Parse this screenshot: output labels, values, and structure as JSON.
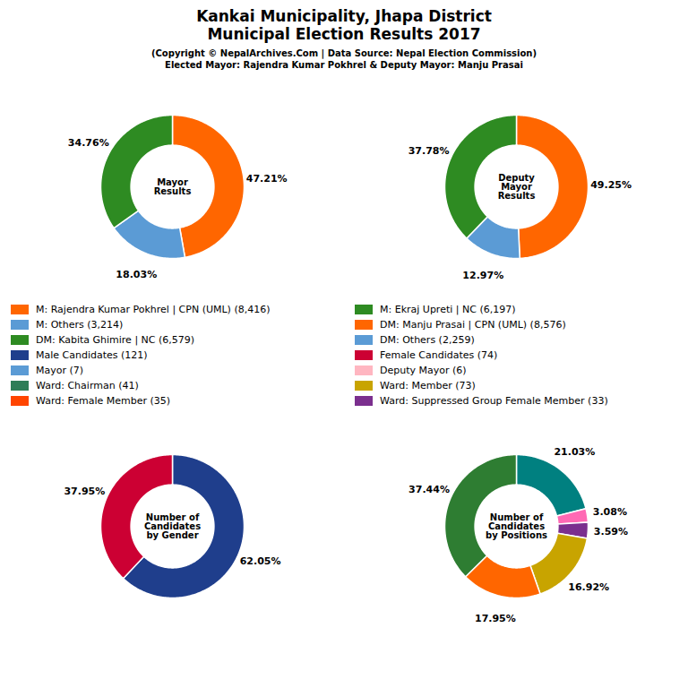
{
  "chart_data": [
    {
      "type": "pie",
      "title": "Kankai Municipality, Jhapa District\nMunicipal Election Results 2017",
      "subtitle": "(Copyright © NepalArchives.Com | Data Source: Nepal Election Commission)\nElected Mayor: Rajendra Kumar Pokhrel & Deputy Mayor: Manju Prasai",
      "annotations": [
        "Mayor\nResults"
      ],
      "values": [
        47.21,
        18.03,
        34.76
      ],
      "value_labels": [
        "47.21%",
        "18.03%",
        "34.76%"
      ],
      "colors": [
        "#FF6600",
        "#5B9BD5",
        "#2E8B22"
      ],
      "data_labels": true
    },
    {
      "type": "pie",
      "annotations": [
        "Deputy\nMayor\nResults"
      ],
      "values": [
        49.25,
        12.97,
        37.78
      ],
      "value_labels": [
        "49.25%",
        "12.97%",
        "37.78%"
      ],
      "colors": [
        "#FF6600",
        "#5B9BD5",
        "#2E8B22"
      ],
      "data_labels": true
    },
    {
      "type": "legend",
      "series": [
        {
          "name": "M: Rajendra Kumar Pokhrel | CPN (UML) (8,416)",
          "color": "#FF6600"
        },
        {
          "name": "M: Others (3,214)",
          "color": "#5B9BD5"
        },
        {
          "name": "DM: Kabita Ghimire | NC (6,579)",
          "color": "#2E8B22"
        },
        {
          "name": "Male Candidates (121)",
          "color": "#1F3E8C"
        },
        {
          "name": "Mayor (7)",
          "color": "#5B9BD5"
        },
        {
          "name": "Ward: Chairman (41)",
          "color": "#2E7D57"
        },
        {
          "name": "Ward: Female Member (35)",
          "color": "#FF4500"
        },
        {
          "name": "M: Ekraj Upreti | NC (6,197)",
          "color": "#2E8B22"
        },
        {
          "name": "DM: Manju Prasai | CPN (UML) (8,576)",
          "color": "#FF6600"
        },
        {
          "name": "DM: Others (2,259)",
          "color": "#5B9BD5"
        },
        {
          "name": "Female Candidates (74)",
          "color": "#CC0033"
        },
        {
          "name": "Deputy Mayor (6)",
          "color": "#FFB6C1"
        },
        {
          "name": "Ward: Member (73)",
          "color": "#C8A400"
        },
        {
          "name": "Ward: Suppressed Group Female Member (33)",
          "color": "#7B2F8E"
        }
      ]
    },
    {
      "type": "pie",
      "annotations": [
        "Number of\nCandidates\nby Gender"
      ],
      "values": [
        62.05,
        37.95
      ],
      "value_labels": [
        "62.05%",
        "37.95%"
      ],
      "colors": [
        "#1F3E8C",
        "#CC0033"
      ],
      "data_labels": true
    },
    {
      "type": "pie",
      "annotations": [
        "Number of\nCandidates\nby Positions"
      ],
      "values": [
        21.03,
        3.08,
        3.59,
        16.92,
        17.95,
        37.44
      ],
      "value_labels": [
        "21.03%",
        "3.08%",
        "3.59%",
        "16.92%",
        "17.95%",
        "37.44%"
      ],
      "colors": [
        "#008080",
        "#FF69B4",
        "#7B2F8E",
        "#C8A400",
        "#FF6600",
        "#2E7D32"
      ],
      "data_labels": true
    }
  ]
}
